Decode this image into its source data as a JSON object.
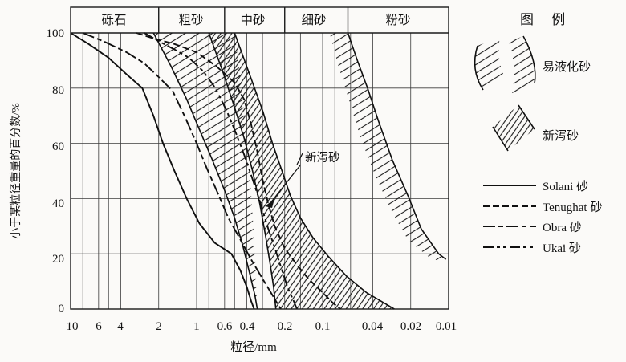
{
  "figure": {
    "kind": "grain-size distribution chart (scanned textbook figure)",
    "ink_color": "#141414",
    "background": "#fbfaf8"
  },
  "header_bands": [
    {
      "label": "砾石",
      "from_mm": 10,
      "to_mm": 2
    },
    {
      "label": "粗砂",
      "from_mm": 2,
      "to_mm": 0.6
    },
    {
      "label": "中砂",
      "from_mm": 0.6,
      "to_mm": 0.2
    },
    {
      "label": "细砂",
      "from_mm": 0.2,
      "to_mm": 0.063
    },
    {
      "label": "粉砂",
      "from_mm": 0.063,
      "to_mm": 0.01
    }
  ],
  "y_axis": {
    "title": "小于某粒径重量的百分数/%",
    "ticks": [
      "100",
      "80",
      "60",
      "40",
      "20",
      "0"
    ]
  },
  "x_axis": {
    "title": "粒径/mm",
    "ticks": [
      "10",
      "6",
      "4",
      "2",
      "1",
      "0.6",
      "0.4",
      "0.2",
      "0.1",
      "0.04",
      "0.02",
      "0.01"
    ]
  },
  "annotation": {
    "text": "新泻砂"
  },
  "legend": {
    "title": "图 例",
    "band_items": [
      {
        "label": "易液化砂",
        "swatch": "two one-sided hatched boundary curves"
      },
      {
        "label": "新泻砂",
        "swatch": "dense hatched band"
      }
    ],
    "line_items": [
      {
        "label": "Solani 砂",
        "style": "solid"
      },
      {
        "label": "Tenughat 砂",
        "style": "short-dash"
      },
      {
        "label": "Obra 砂",
        "style": "long-short"
      },
      {
        "label": "Ukai 砂",
        "style": "long-short-short"
      }
    ]
  },
  "chart_data": {
    "type": "line",
    "title": "",
    "xlabel": "粒径/mm",
    "ylabel": "小于某粒径重量的百分数/%",
    "x_scale": "log",
    "x_range_mm": [
      10,
      0.01
    ],
    "y_range_pct": [
      0,
      100
    ],
    "x_tick_values": [
      10,
      6,
      4,
      2,
      1,
      0.6,
      0.4,
      0.2,
      0.1,
      0.04,
      0.02,
      0.01
    ],
    "x_minor_gridlines": [
      8,
      5,
      0.8,
      0.5,
      0.3,
      0.15,
      0.08,
      0.06
    ],
    "y_gridlines_pct": [
      80,
      60,
      40,
      20
    ],
    "grid": true,
    "legend_position": "right",
    "series": [
      {
        "name": "Solani 砂",
        "style": "solid",
        "points": [
          [
            10,
            100
          ],
          [
            7.2,
            96
          ],
          [
            5,
            91
          ],
          [
            3.6,
            85
          ],
          [
            2.7,
            80
          ],
          [
            2.2,
            70
          ],
          [
            1.85,
            60
          ],
          [
            1.5,
            50
          ],
          [
            1.2,
            40
          ],
          [
            0.95,
            31
          ],
          [
            0.72,
            24
          ],
          [
            0.53,
            20
          ],
          [
            0.45,
            14
          ],
          [
            0.4,
            8
          ],
          [
            0.37,
            3
          ],
          [
            0.35,
            0
          ]
        ]
      },
      {
        "name": "Tenughat 砂",
        "style": "short-dash",
        "points": [
          [
            3.0,
            100
          ],
          [
            2.2,
            98
          ],
          [
            1.5,
            96
          ],
          [
            1.0,
            93
          ],
          [
            0.7,
            88
          ],
          [
            0.5,
            82
          ],
          [
            0.42,
            76
          ],
          [
            0.37,
            67
          ],
          [
            0.33,
            57
          ],
          [
            0.3,
            47
          ],
          [
            0.27,
            38
          ],
          [
            0.24,
            30
          ],
          [
            0.2,
            22
          ],
          [
            0.16,
            16
          ],
          [
            0.13,
            11
          ],
          [
            0.1,
            6
          ],
          [
            0.082,
            2
          ],
          [
            0.072,
            0
          ]
        ]
      },
      {
        "name": "Obra 砂",
        "style": "long-short",
        "points": [
          [
            8.0,
            100
          ],
          [
            5.5,
            97
          ],
          [
            3.6,
            93
          ],
          [
            2.6,
            89
          ],
          [
            2.0,
            84
          ],
          [
            1.55,
            79
          ],
          [
            1.25,
            70
          ],
          [
            1.0,
            60
          ],
          [
            0.83,
            51
          ],
          [
            0.68,
            42
          ],
          [
            0.56,
            33
          ],
          [
            0.46,
            26
          ],
          [
            0.37,
            18
          ],
          [
            0.3,
            11
          ],
          [
            0.25,
            5
          ],
          [
            0.215,
            0
          ]
        ]
      },
      {
        "name": "Ukai 砂",
        "style": "long-short-short",
        "points": [
          [
            2.6,
            100
          ],
          [
            2.0,
            97
          ],
          [
            1.5,
            94
          ],
          [
            1.15,
            91
          ],
          [
            0.88,
            86
          ],
          [
            0.71,
            80
          ],
          [
            0.58,
            72
          ],
          [
            0.49,
            64
          ],
          [
            0.42,
            56
          ],
          [
            0.36,
            47
          ],
          [
            0.31,
            38
          ],
          [
            0.27,
            29
          ],
          [
            0.235,
            21
          ],
          [
            0.21,
            14
          ],
          [
            0.19,
            8
          ],
          [
            0.17,
            3
          ],
          [
            0.16,
            0
          ]
        ]
      }
    ],
    "bands": [
      {
        "name": "易液化砂-left-boundary",
        "pattern": "hatchLight",
        "stroke": "outer",
        "outer": [
          [
            2.2,
            100
          ],
          [
            1.6,
            88
          ],
          [
            1.2,
            76
          ],
          [
            0.95,
            65
          ],
          [
            0.75,
            54
          ],
          [
            0.6,
            43
          ],
          [
            0.5,
            33
          ],
          [
            0.43,
            23
          ],
          [
            0.38,
            13
          ],
          [
            0.345,
            5
          ],
          [
            0.33,
            0
          ]
        ],
        "inner": [
          [
            0.5,
            100
          ],
          [
            0.445,
            82
          ],
          [
            0.405,
            64
          ],
          [
            0.375,
            46
          ],
          [
            0.355,
            30
          ],
          [
            0.34,
            15
          ],
          [
            0.332,
            0
          ]
        ]
      },
      {
        "name": "新泻砂",
        "pattern": "hatchDense",
        "stroke": "both",
        "outer": [
          [
            0.8,
            100
          ],
          [
            0.62,
            86
          ],
          [
            0.5,
            73
          ],
          [
            0.42,
            62
          ],
          [
            0.36,
            50
          ],
          [
            0.315,
            38
          ],
          [
            0.285,
            27
          ],
          [
            0.26,
            16
          ],
          [
            0.245,
            8
          ],
          [
            0.235,
            0
          ]
        ],
        "inner": [
          [
            0.5,
            100
          ],
          [
            0.38,
            85
          ],
          [
            0.3,
            72
          ],
          [
            0.25,
            60
          ],
          [
            0.21,
            50
          ],
          [
            0.18,
            41
          ],
          [
            0.15,
            33
          ],
          [
            0.12,
            26
          ],
          [
            0.09,
            19
          ],
          [
            0.065,
            12
          ],
          [
            0.045,
            6
          ],
          [
            0.032,
            2
          ],
          [
            0.027,
            0
          ]
        ]
      },
      {
        "name": "易液化砂-right-boundary",
        "pattern": "hatchLight",
        "stroke": "outer",
        "outer": [
          [
            0.063,
            100
          ],
          [
            0.053,
            90
          ],
          [
            0.044,
            80
          ],
          [
            0.036,
            68
          ],
          [
            0.028,
            54
          ],
          [
            0.021,
            41
          ],
          [
            0.0165,
            29
          ],
          [
            0.012,
            20
          ],
          [
            0.0105,
            18
          ]
        ],
        "inner": [
          [
            0.088,
            100
          ],
          [
            0.075,
            88
          ],
          [
            0.062,
            76
          ],
          [
            0.05,
            62
          ],
          [
            0.038,
            48
          ],
          [
            0.028,
            35
          ],
          [
            0.021,
            25
          ],
          [
            0.0145,
            19
          ],
          [
            0.0115,
            17
          ]
        ]
      }
    ]
  }
}
